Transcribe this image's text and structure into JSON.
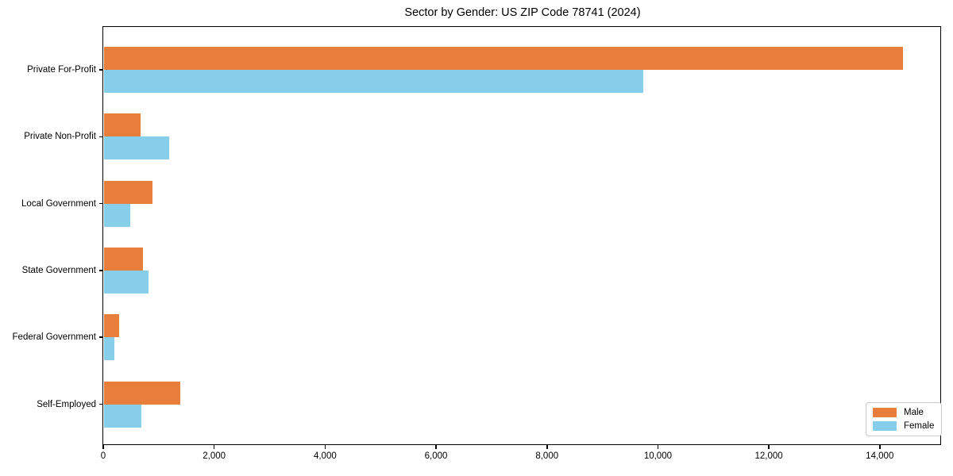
{
  "chart_data": {
    "type": "bar",
    "orientation": "horizontal",
    "title": "Sector by Gender: US ZIP Code 78741 (2024)",
    "categories": [
      "Private For-Profit",
      "Private Non-Profit",
      "Local Government",
      "State Government",
      "Federal Government",
      "Self-Employed"
    ],
    "series": [
      {
        "name": "Male",
        "color": "#e87e3c",
        "values": [
          14400,
          660,
          870,
          700,
          270,
          1380
        ]
      },
      {
        "name": "Female",
        "color": "#87ceeb",
        "values": [
          9720,
          1180,
          470,
          800,
          190,
          680
        ]
      }
    ],
    "xlim": [
      0,
      15120
    ],
    "xticks": [
      0,
      2000,
      4000,
      6000,
      8000,
      10000,
      12000,
      14000
    ],
    "xtick_labels": [
      "0",
      "2,000",
      "4,000",
      "6,000",
      "8,000",
      "10,000",
      "12,000",
      "14,000"
    ],
    "ylabel": "",
    "xlabel": "",
    "grid": false,
    "legend": {
      "position": "lower right",
      "entries": [
        "Male",
        "Female"
      ]
    },
    "colors": {
      "frame": "#000000",
      "background": "#ffffff",
      "text": "#000000",
      "legend_border": "#c9c9c9"
    }
  }
}
